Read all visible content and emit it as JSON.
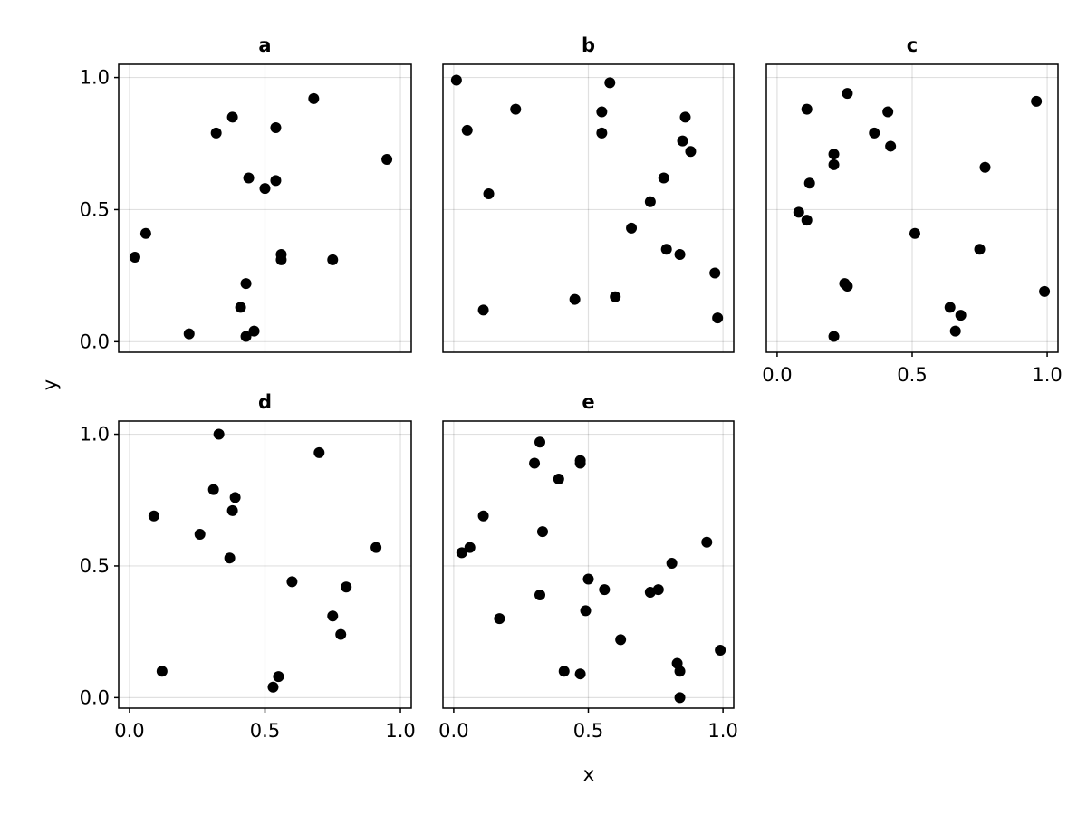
{
  "figure": {
    "xlabel": "x",
    "ylabel": "y"
  },
  "chart_data": [
    {
      "type": "scatter",
      "title": "a",
      "xlim": [
        -0.04,
        1.04
      ],
      "ylim": [
        -0.04,
        1.05
      ],
      "xticks": [
        0.0,
        0.5,
        1.0
      ],
      "yticks": [
        0.0,
        0.5,
        1.0
      ],
      "xtick_labels": [],
      "ytick_labels": [
        "0.0",
        "0.5",
        "1.0"
      ],
      "grid": true,
      "x": [
        0.02,
        0.06,
        0.22,
        0.32,
        0.38,
        0.41,
        0.43,
        0.43,
        0.44,
        0.46,
        0.5,
        0.54,
        0.54,
        0.56,
        0.56,
        0.68,
        0.75,
        0.95
      ],
      "y": [
        0.32,
        0.41,
        0.03,
        0.79,
        0.85,
        0.13,
        0.02,
        0.22,
        0.62,
        0.04,
        0.58,
        0.81,
        0.61,
        0.33,
        0.31,
        0.92,
        0.31,
        0.69
      ]
    },
    {
      "type": "scatter",
      "title": "b",
      "xlim": [
        -0.04,
        1.04
      ],
      "ylim": [
        -0.04,
        1.05
      ],
      "xticks": [
        0.0,
        0.5,
        1.0
      ],
      "yticks": [
        0.0,
        0.5,
        1.0
      ],
      "xtick_labels": [],
      "ytick_labels": [],
      "grid": true,
      "x": [
        0.01,
        0.05,
        0.11,
        0.13,
        0.23,
        0.45,
        0.55,
        0.55,
        0.58,
        0.6,
        0.66,
        0.73,
        0.78,
        0.79,
        0.84,
        0.85,
        0.86,
        0.88,
        0.97,
        0.98
      ],
      "y": [
        0.99,
        0.8,
        0.12,
        0.56,
        0.88,
        0.16,
        0.87,
        0.79,
        0.98,
        0.17,
        0.43,
        0.53,
        0.62,
        0.35,
        0.33,
        0.76,
        0.85,
        0.72,
        0.26,
        0.09
      ]
    },
    {
      "type": "scatter",
      "title": "c",
      "xlim": [
        -0.04,
        1.04
      ],
      "ylim": [
        -0.04,
        1.05
      ],
      "xticks": [
        0.0,
        0.5,
        1.0
      ],
      "yticks": [
        0.0,
        0.5,
        1.0
      ],
      "xtick_labels": [
        "0.0",
        "0.5",
        "1.0"
      ],
      "ytick_labels": [],
      "grid": true,
      "x": [
        0.08,
        0.11,
        0.11,
        0.12,
        0.21,
        0.21,
        0.21,
        0.25,
        0.26,
        0.26,
        0.36,
        0.41,
        0.42,
        0.51,
        0.64,
        0.66,
        0.68,
        0.75,
        0.77,
        0.96,
        0.99
      ],
      "y": [
        0.49,
        0.88,
        0.46,
        0.6,
        0.71,
        0.67,
        0.02,
        0.22,
        0.21,
        0.94,
        0.79,
        0.87,
        0.74,
        0.41,
        0.13,
        0.04,
        0.1,
        0.35,
        0.66,
        0.91,
        0.19
      ]
    },
    {
      "type": "scatter",
      "title": "d",
      "xlim": [
        -0.04,
        1.04
      ],
      "ylim": [
        -0.04,
        1.05
      ],
      "xticks": [
        0.0,
        0.5,
        1.0
      ],
      "yticks": [
        0.0,
        0.5,
        1.0
      ],
      "xtick_labels": [
        "0.0",
        "0.5",
        "1.0"
      ],
      "ytick_labels": [
        "0.0",
        "0.5",
        "1.0"
      ],
      "grid": true,
      "x": [
        0.09,
        0.12,
        0.26,
        0.31,
        0.33,
        0.37,
        0.38,
        0.39,
        0.53,
        0.55,
        0.6,
        0.7,
        0.75,
        0.78,
        0.8,
        0.91
      ],
      "y": [
        0.69,
        0.1,
        0.62,
        0.79,
        1.0,
        0.53,
        0.71,
        0.76,
        0.04,
        0.08,
        0.44,
        0.93,
        0.31,
        0.24,
        0.42,
        0.57
      ]
    },
    {
      "type": "scatter",
      "title": "e",
      "xlim": [
        -0.04,
        1.04
      ],
      "ylim": [
        -0.04,
        1.05
      ],
      "xticks": [
        0.0,
        0.5,
        1.0
      ],
      "yticks": [
        0.0,
        0.5,
        1.0
      ],
      "xtick_labels": [
        "0.0",
        "0.5",
        "1.0"
      ],
      "ytick_labels": [],
      "grid": true,
      "x": [
        0.03,
        0.06,
        0.11,
        0.17,
        0.3,
        0.32,
        0.32,
        0.33,
        0.39,
        0.41,
        0.47,
        0.47,
        0.47,
        0.49,
        0.5,
        0.56,
        0.62,
        0.73,
        0.76,
        0.81,
        0.83,
        0.84,
        0.84,
        0.94,
        0.99
      ],
      "y": [
        0.55,
        0.57,
        0.69,
        0.3,
        0.89,
        0.97,
        0.39,
        0.63,
        0.83,
        0.1,
        0.09,
        0.9,
        0.89,
        0.33,
        0.45,
        0.41,
        0.22,
        0.4,
        0.41,
        0.51,
        0.13,
        0.1,
        0.0,
        0.59,
        0.18
      ]
    }
  ]
}
